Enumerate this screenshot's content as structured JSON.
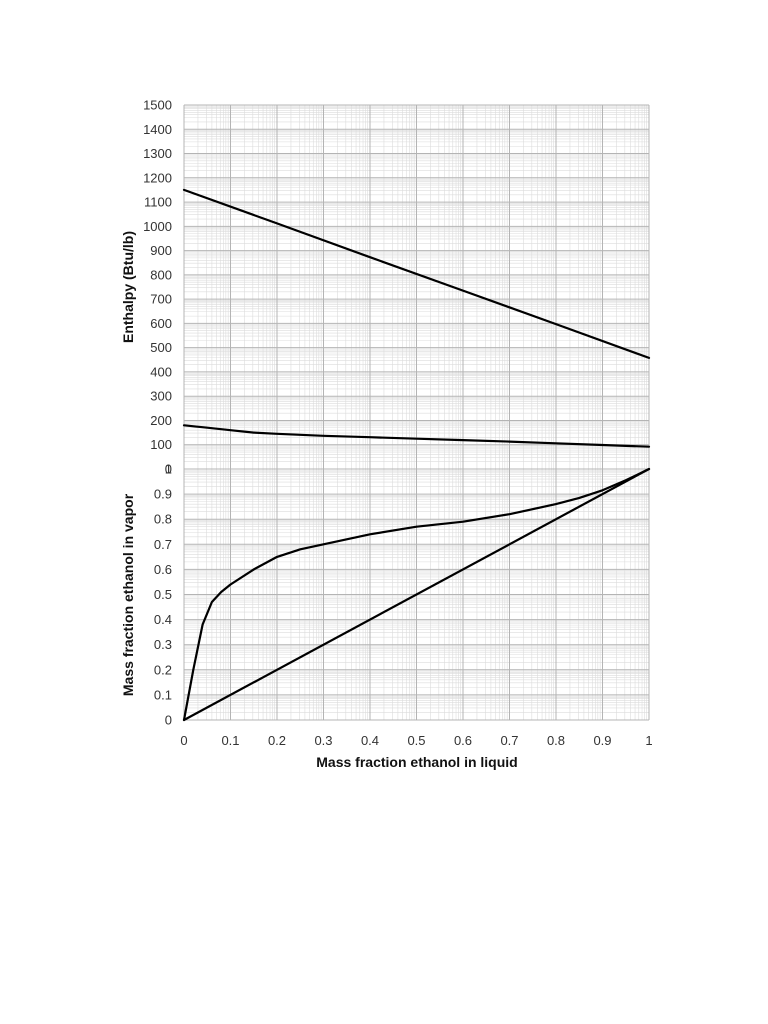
{
  "chart_data": [
    {
      "type": "line",
      "title": "",
      "xlabel": "",
      "ylabel": "Enthalpy (Btu/lb)",
      "xlim": [
        0,
        1
      ],
      "ylim": [
        0,
        1500
      ],
      "x_ticks": [
        "0",
        "0.1",
        "0.2",
        "0.3",
        "0.4",
        "0.5",
        "0.6",
        "0.7",
        "0.8",
        "0.9",
        "1"
      ],
      "y_ticks": [
        "0",
        "100",
        "200",
        "300",
        "400",
        "500",
        "600",
        "700",
        "800",
        "900",
        "1000",
        "1100",
        "1200",
        "1300",
        "1400",
        "1500"
      ],
      "grid": true,
      "series": [
        {
          "x": [
            0,
            0.2,
            0.4,
            0.6,
            0.8,
            1.0
          ],
          "y": [
            1150,
            1012,
            873,
            735,
            597,
            458
          ]
        },
        {
          "x": [
            0,
            0.05,
            0.1,
            0.15,
            0.2,
            0.3,
            0.4,
            0.5,
            0.6,
            0.7,
            0.8,
            0.9,
            1.0
          ],
          "y": [
            180,
            170,
            160,
            150,
            145,
            137,
            131,
            125,
            119,
            113,
            106,
            99,
            92
          ]
        }
      ]
    },
    {
      "type": "line",
      "title": "",
      "xlabel": "Mass fraction ethanol in liquid",
      "ylabel": "Mass fraction ethanol in vapor",
      "xlim": [
        0,
        1
      ],
      "ylim": [
        0,
        1
      ],
      "x_ticks": [
        "0",
        "0.1",
        "0.2",
        "0.3",
        "0.4",
        "0.5",
        "0.6",
        "0.7",
        "0.8",
        "0.9",
        "1"
      ],
      "y_ticks": [
        "0",
        "0.1",
        "0.2",
        "0.3",
        "0.4",
        "0.5",
        "0.6",
        "0.7",
        "0.8",
        "0.9",
        "1"
      ],
      "grid": true,
      "series": [
        {
          "x": [
            0,
            0.02,
            0.04,
            0.06,
            0.08,
            0.1,
            0.15,
            0.2,
            0.25,
            0.3,
            0.4,
            0.5,
            0.6,
            0.7,
            0.8,
            0.85,
            0.9,
            0.95,
            1.0
          ],
          "y": [
            0,
            0.2,
            0.38,
            0.47,
            0.51,
            0.54,
            0.6,
            0.65,
            0.68,
            0.7,
            0.74,
            0.77,
            0.79,
            0.82,
            0.86,
            0.885,
            0.915,
            0.955,
            1.0
          ]
        },
        {
          "x": [
            0,
            1
          ],
          "y": [
            0,
            1
          ]
        }
      ]
    }
  ]
}
